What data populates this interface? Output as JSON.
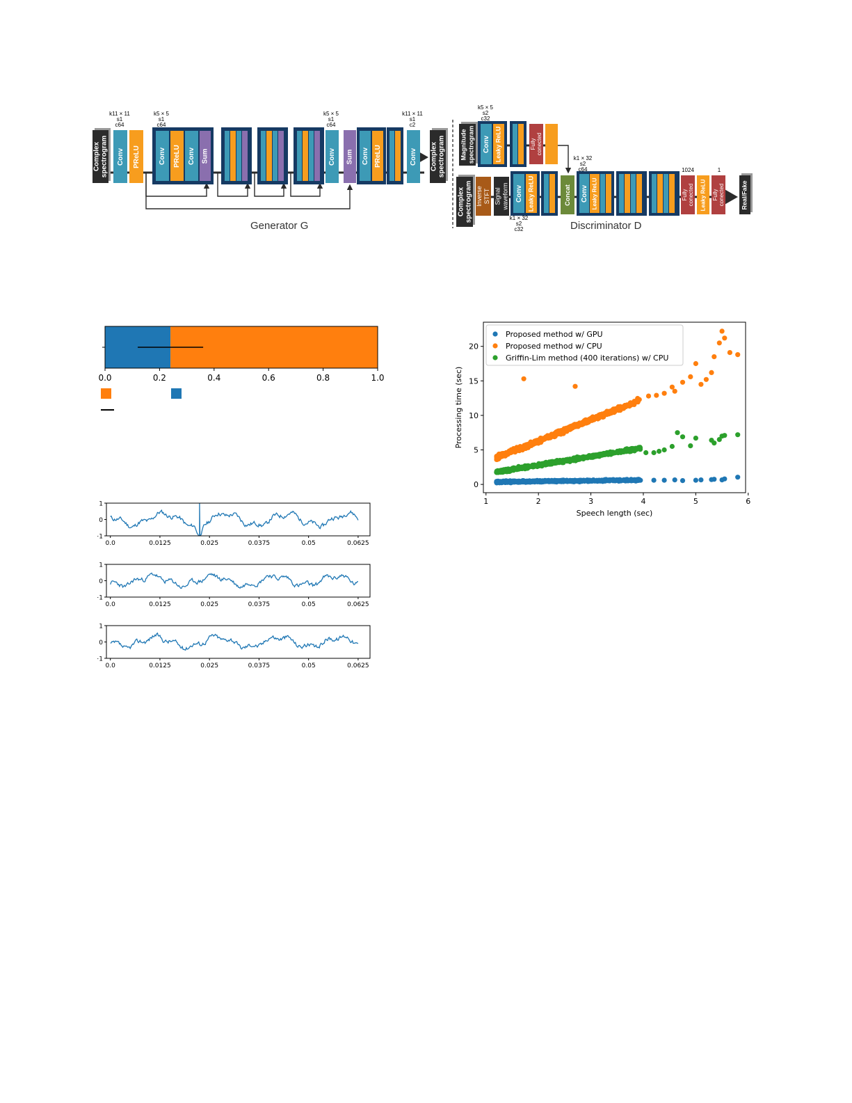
{
  "colors": {
    "conv": "#3d9ab6",
    "prelu": "#f79d1e",
    "sum": "#8a6fae",
    "spectrogram": "#2b2b2b",
    "group_border": "#163a63",
    "fc": "#b04040",
    "stft": "#a85a18",
    "concat": "#6c8a3a",
    "blue": "#1f77b4",
    "orange": "#ff7f0e",
    "green": "#2ca02c"
  },
  "diagram": {
    "generator": {
      "title": "Generator G",
      "input": "Complex\nspectrogram",
      "output": "Complex\nspectrogram",
      "conv": "Conv",
      "prelu": "PReLU",
      "sum": "Sum",
      "param_in": "k11 × 11\ns1\nc64",
      "param_res": "k5 × 5\ns1\nc64",
      "param_mid": "k5 × 5\ns1\nc64",
      "param_out": "k11 × 11\ns1\nc2"
    },
    "discriminator": {
      "title": "Discriminator D",
      "magnitude": "Magnitude\nspectrogram",
      "complex": "Complex\nspectrogram",
      "inverse_stft": "Inverse\nSTFT",
      "signal_waveform": "Signal\nwaveform",
      "conv": "Conv",
      "leaky_relu": "Leaky ReLU",
      "fully_connected": "Fully\nconected",
      "concat": "Concat",
      "real_fake": "Real/Fake",
      "param_top": "k5 × 5\ns2\nc32",
      "param_mid": "k1 × 32\ns2\nc64",
      "param_wave": "k1 × 32\ns2\nc32",
      "fc1_units": "1024",
      "fc2_units": "1"
    }
  },
  "bar_chart": {
    "type": "bar",
    "orientation": "horizontal",
    "segments": [
      {
        "color": "#1f77b4",
        "start": 0.0,
        "end": 0.24
      },
      {
        "color": "#ff7f0e",
        "start": 0.24,
        "end": 1.0
      }
    ],
    "error_bar": {
      "low": 0.12,
      "high": 0.36
    },
    "xlim": [
      0.0,
      1.0
    ],
    "xticks": [
      "0.0",
      "0.2",
      "0.4",
      "0.6",
      "0.8",
      "1.0"
    ]
  },
  "chart_data": [
    {
      "type": "scatter",
      "xlabel": "Speech length  (sec)",
      "ylabel": "Processing time  (sec)",
      "xlim": [
        0.95,
        5.95
      ],
      "ylim": [
        -1.2,
        23.5
      ],
      "xticks": [
        1,
        2,
        3,
        4,
        5,
        6
      ],
      "yticks": [
        0,
        5,
        10,
        15,
        20
      ],
      "legend_position": "top-left",
      "series": [
        {
          "name": "Proposed method w/ GPU",
          "color": "#1f77b4",
          "trend": {
            "slope": 0.1,
            "intercept": 0.25,
            "xmin": 1.2,
            "xmax": 3.95,
            "spread": 0.18
          },
          "outliers": [
            [
              4.2,
              0.6
            ],
            [
              4.4,
              0.6
            ],
            [
              4.6,
              0.65
            ],
            [
              4.75,
              0.55
            ],
            [
              5.0,
              0.6
            ],
            [
              5.1,
              0.65
            ],
            [
              5.3,
              0.7
            ],
            [
              5.35,
              0.75
            ],
            [
              5.5,
              0.65
            ],
            [
              5.55,
              0.8
            ],
            [
              5.8,
              1.05
            ]
          ]
        },
        {
          "name": "Proposed method w/ CPU",
          "color": "#ff7f0e",
          "trend": {
            "slope": 3.05,
            "intercept": 0.2,
            "xmin": 1.2,
            "xmax": 3.95,
            "spread": 0.45
          },
          "outliers": [
            [
              1.72,
              15.3
            ],
            [
              2.7,
              14.2
            ],
            [
              4.1,
              12.8
            ],
            [
              4.25,
              12.9
            ],
            [
              4.4,
              13.2
            ],
            [
              4.6,
              13.5
            ],
            [
              4.75,
              14.8
            ],
            [
              4.9,
              15.6
            ],
            [
              5.0,
              17.5
            ],
            [
              5.1,
              14.5
            ],
            [
              5.3,
              16.2
            ],
            [
              5.35,
              18.5
            ],
            [
              5.45,
              20.5
            ],
            [
              5.5,
              22.2
            ],
            [
              5.55,
              21.2
            ],
            [
              5.65,
              19.1
            ],
            [
              5.8,
              18.8
            ],
            [
              5.2,
              15.2
            ],
            [
              4.55,
              14.1
            ]
          ]
        },
        {
          "name": "Griffin-Lim method (400 iterations) w/ CPU",
          "color": "#2ca02c",
          "trend": {
            "slope": 1.25,
            "intercept": 0.3,
            "xmin": 1.2,
            "xmax": 3.95,
            "spread": 0.3
          },
          "outliers": [
            [
              4.05,
              4.6
            ],
            [
              4.2,
              4.6
            ],
            [
              4.3,
              4.8
            ],
            [
              4.4,
              5.0
            ],
            [
              4.55,
              5.5
            ],
            [
              4.65,
              7.5
            ],
            [
              4.75,
              6.9
            ],
            [
              5.0,
              6.7
            ],
            [
              5.3,
              6.4
            ],
            [
              5.35,
              6.0
            ],
            [
              5.45,
              6.5
            ],
            [
              5.5,
              7.0
            ],
            [
              5.55,
              7.1
            ],
            [
              5.8,
              7.2
            ],
            [
              4.9,
              5.6
            ]
          ]
        }
      ]
    },
    {
      "type": "line",
      "xticks": [
        "0.0",
        "0.0125",
        "0.025",
        "0.0375",
        "0.05",
        "0.0625"
      ],
      "yticks": [
        "1",
        "0",
        "−1"
      ],
      "xlim": [
        -0.001,
        0.0655
      ],
      "ylim": [
        -1,
        1
      ],
      "series": [
        {
          "color": "#1f77b4",
          "shape": "spike",
          "seed": 11,
          "phase": 2.4,
          "amp": 0.35,
          "spike_x": 0.0225
        }
      ]
    },
    {
      "type": "line",
      "xticks": [
        "0.0",
        "0.0125",
        "0.025",
        "0.0375",
        "0.05",
        "0.0625"
      ],
      "yticks": [
        "1",
        "0",
        "−1"
      ],
      "xlim": [
        -0.001,
        0.0655
      ],
      "ylim": [
        -1,
        1
      ],
      "series": [
        {
          "color": "#1f77b4",
          "shape": "smooth",
          "seed": 23,
          "phase": 3.6,
          "amp": 0.28
        }
      ]
    },
    {
      "type": "line",
      "xticks": [
        "0.0",
        "0.0125",
        "0.025",
        "0.0375",
        "0.05",
        "0.0625"
      ],
      "yticks": [
        "1",
        "0",
        "−1"
      ],
      "xlim": [
        -0.001,
        0.0655
      ],
      "ylim": [
        -1,
        1
      ],
      "series": [
        {
          "color": "#1f77b4",
          "shape": "smooth",
          "seed": 37,
          "phase": 3.2,
          "amp": 0.3
        }
      ]
    }
  ]
}
